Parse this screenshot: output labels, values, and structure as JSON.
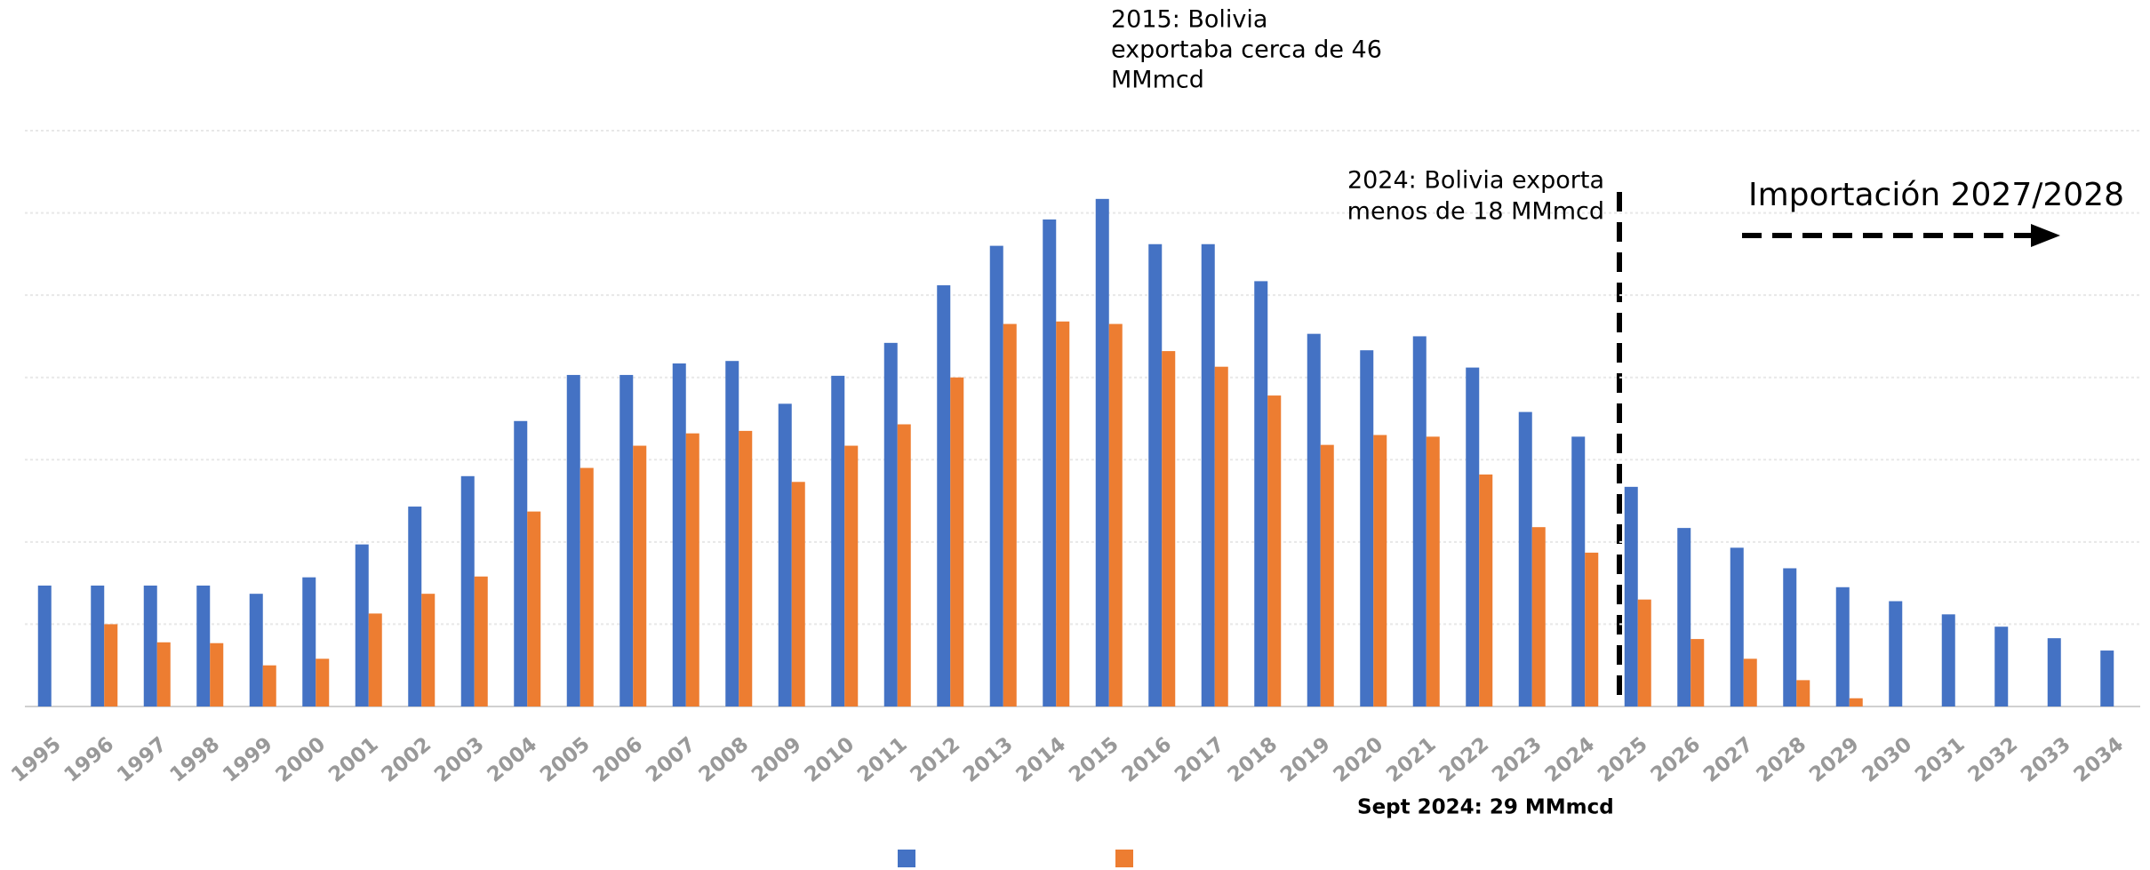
{
  "chart_data": {
    "type": "bar",
    "categories": [
      "1995",
      "1996",
      "1997",
      "1998",
      "1999",
      "2000",
      "2001",
      "2002",
      "2003",
      "2004",
      "2005",
      "2006",
      "2007",
      "2008",
      "2009",
      "2010",
      "2011",
      "2012",
      "2013",
      "2014",
      "2015",
      "2016",
      "2017",
      "2018",
      "2019",
      "2020",
      "2021",
      "2022",
      "2023",
      "2024",
      "2025",
      "2026",
      "2027",
      "2028",
      "2029",
      "2030",
      "2031",
      "2032",
      "2033",
      "2034"
    ],
    "series": [
      {
        "color": "#4472c4",
        "values": [
          14.7,
          14.7,
          14.7,
          14.7,
          13.7,
          15.7,
          19.7,
          24.3,
          28,
          34.7,
          40.3,
          40.3,
          41.7,
          42,
          36.8,
          40.2,
          44.2,
          51.2,
          56,
          59.2,
          61.7,
          56.2,
          56.2,
          51.7,
          45.3,
          43.3,
          45,
          41.2,
          35.8,
          32.8,
          26.7,
          21.7,
          19.3,
          16.8,
          14.5,
          12.8,
          11.2,
          9.7,
          8.3,
          6.8
        ]
      },
      {
        "color": "#ed7d31",
        "values": [
          null,
          10,
          7.8,
          7.7,
          5,
          5.8,
          11.3,
          13.7,
          15.8,
          23.7,
          29,
          31.7,
          33.2,
          33.5,
          27.3,
          31.7,
          34.3,
          40,
          46.5,
          46.8,
          46.5,
          43.2,
          41.3,
          37.8,
          31.8,
          33,
          32.8,
          28.2,
          21.8,
          18.7,
          13,
          8.2,
          5.8,
          3.2,
          1,
          null,
          null,
          null,
          null,
          null
        ]
      }
    ],
    "ylim": [
      0,
      70
    ],
    "yticks": [
      0,
      10,
      20,
      30,
      40,
      50,
      60,
      70
    ],
    "grid": true,
    "annotations": [
      [
        "2015: Bolivia",
        "exportaba cerca de 46",
        "MMmcd"
      ],
      [
        "2024: Bolivia exporta",
        "menos de 18 MMmcd"
      ],
      [
        "Importación 2027/2028"
      ],
      [
        "Sept 2024: 29 MMmcd"
      ]
    ]
  }
}
